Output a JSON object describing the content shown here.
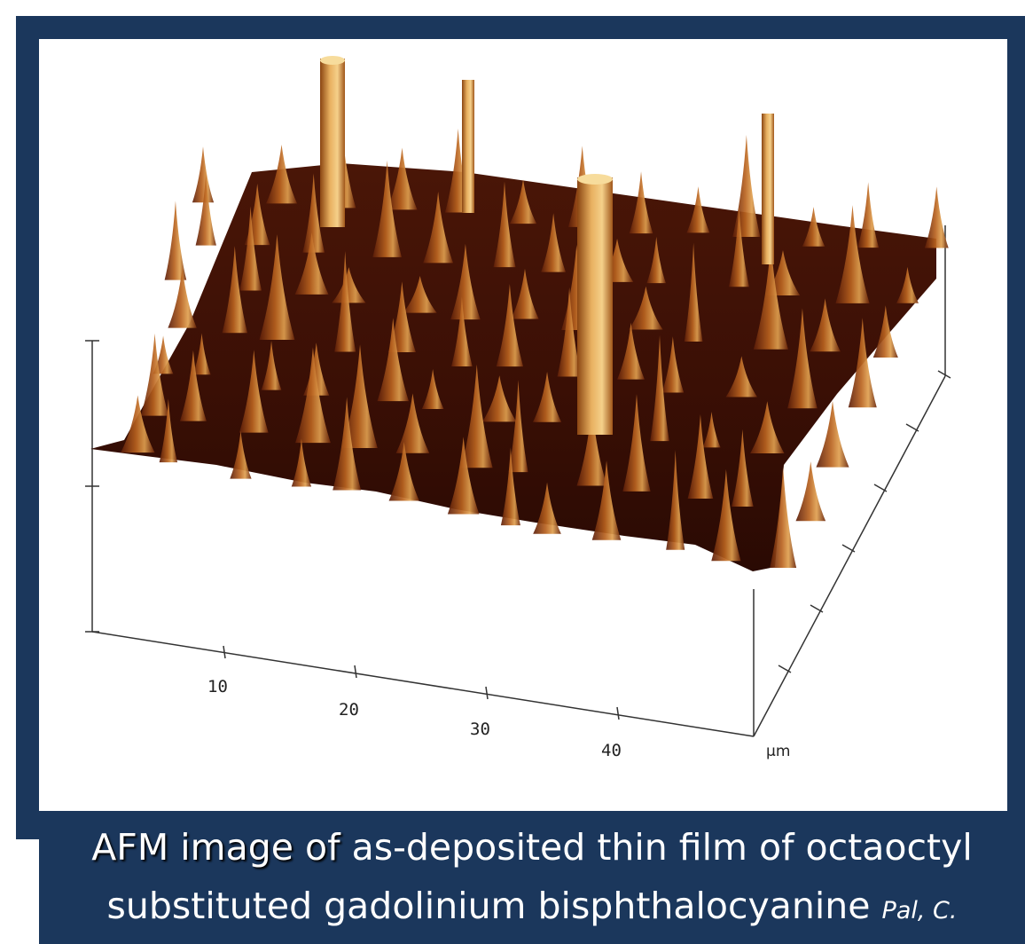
{
  "caption": {
    "line1_shadowed": "AFM image of ",
    "line1_rest": "as-deposited thin film of octaoctyl",
    "line2": "substituted gadolinium bisphthalocyanine ",
    "citation": "Pal, C."
  },
  "plot": {
    "x_ticks": [
      "10",
      "20",
      "30",
      "40"
    ],
    "unit": "µm"
  },
  "colors": {
    "frame": "#1b375c",
    "surface_dark": "#3a0f05",
    "surface_mid": "#6e2a0e",
    "peak_highlight": "#f2c070"
  }
}
